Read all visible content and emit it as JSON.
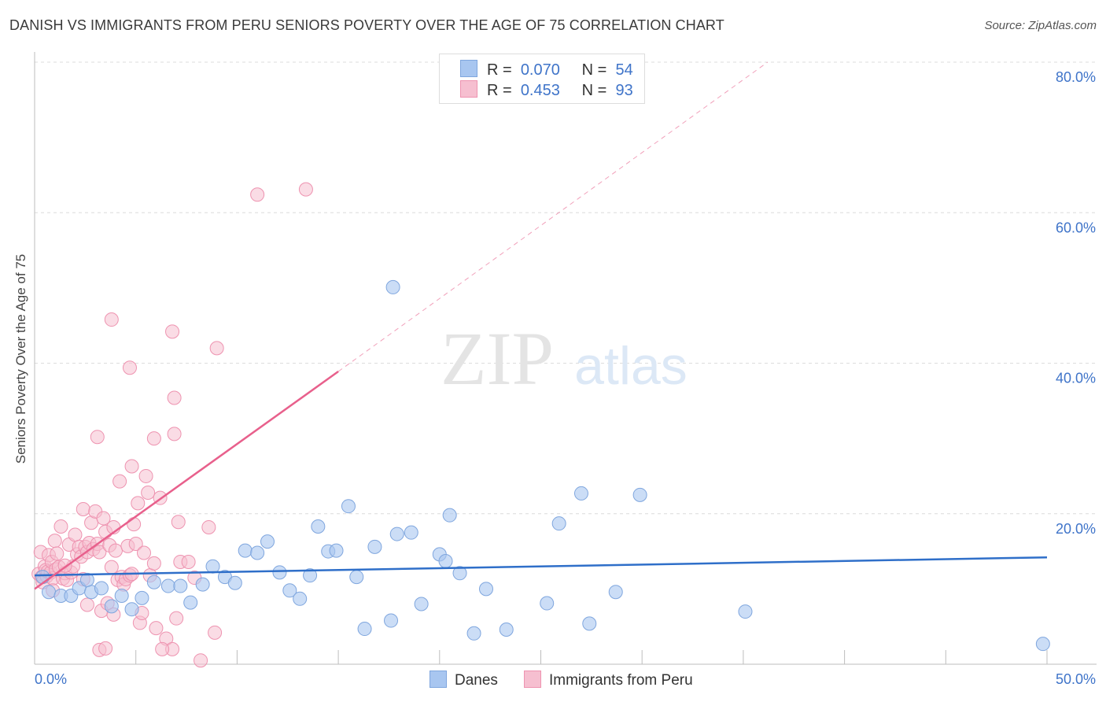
{
  "header": {
    "title": "DANISH VS IMMIGRANTS FROM PERU SENIORS POVERTY OVER THE AGE OF 75 CORRELATION CHART",
    "source": "Source: ZipAtlas.com"
  },
  "watermark": {
    "zip": "ZIP",
    "atlas": "atlas"
  },
  "legend": {
    "rows": [
      {
        "r_label": "R =",
        "r_value": "0.070",
        "n_label": "N =",
        "n_value": "54"
      },
      {
        "r_label": "R =",
        "r_value": "0.453",
        "n_label": "N =",
        "n_value": "93"
      }
    ]
  },
  "bottom_legend": {
    "danes": "Danes",
    "peru": "Immigrants from Peru"
  },
  "colors": {
    "danes_fill": "#a8c6f0",
    "danes_stroke": "#7fa6de",
    "danes_line": "#2f6fc9",
    "peru_fill": "#f6bfd0",
    "peru_stroke": "#ee93b0",
    "peru_line": "#e8608c",
    "axis_text": "#3f74c9",
    "grid": "#dcdcdc"
  },
  "chart_data": {
    "type": "scatter",
    "title": "DANISH VS IMMIGRANTS FROM PERU SENIORS POVERTY OVER THE AGE OF 75 CORRELATION CHART",
    "xlabel": "",
    "ylabel": "Seniors Poverty Over the Age of 75",
    "xlim": [
      0,
      50
    ],
    "ylim": [
      0,
      80
    ],
    "x_tick_labels": [
      "0.0%",
      "50.0%"
    ],
    "y_ticks": [
      20,
      40,
      60,
      80
    ],
    "y_tick_labels": [
      "20.0%",
      "40.0%",
      "60.0%",
      "80.0%"
    ],
    "grid": true,
    "legend_position": "top-center",
    "series": [
      {
        "name": "Danes",
        "R": 0.07,
        "N": 54,
        "trend": {
          "x": [
            0,
            50
          ],
          "y": [
            11.8,
            14.2
          ]
        },
        "points": [
          [
            0.7,
            9.6
          ],
          [
            1.3,
            9.1
          ],
          [
            1.8,
            9.1
          ],
          [
            2.2,
            10.1
          ],
          [
            2.8,
            9.6
          ],
          [
            3.3,
            10.1
          ],
          [
            3.8,
            7.7
          ],
          [
            4.3,
            9.1
          ],
          [
            4.8,
            7.3
          ],
          [
            5.3,
            8.8
          ],
          [
            5.9,
            10.9
          ],
          [
            6.6,
            10.4
          ],
          [
            7.2,
            10.4
          ],
          [
            7.7,
            8.2
          ],
          [
            8.3,
            10.6
          ],
          [
            8.8,
            13.0
          ],
          [
            9.4,
            11.6
          ],
          [
            9.9,
            10.8
          ],
          [
            10.4,
            15.1
          ],
          [
            11.0,
            14.8
          ],
          [
            11.5,
            16.3
          ],
          [
            12.1,
            12.2
          ],
          [
            12.6,
            9.8
          ],
          [
            13.1,
            8.7
          ],
          [
            13.6,
            11.8
          ],
          [
            14.0,
            18.3
          ],
          [
            14.5,
            15.0
          ],
          [
            14.9,
            15.1
          ],
          [
            15.5,
            21.0
          ],
          [
            15.9,
            11.6
          ],
          [
            16.3,
            4.7
          ],
          [
            16.8,
            15.6
          ],
          [
            17.6,
            5.8
          ],
          [
            17.9,
            17.3
          ],
          [
            18.6,
            17.5
          ],
          [
            19.1,
            8.0
          ],
          [
            20.0,
            14.6
          ],
          [
            20.3,
            13.7
          ],
          [
            20.5,
            19.8
          ],
          [
            21.0,
            12.1
          ],
          [
            21.7,
            4.1
          ],
          [
            22.3,
            10.0
          ],
          [
            23.3,
            4.6
          ],
          [
            25.3,
            8.1
          ],
          [
            25.9,
            18.7
          ],
          [
            27.0,
            22.7
          ],
          [
            27.4,
            5.4
          ],
          [
            28.7,
            9.6
          ],
          [
            29.9,
            22.5
          ],
          [
            35.1,
            7.0
          ],
          [
            17.7,
            50.1
          ],
          [
            49.8,
            2.7
          ],
          [
            0.4,
            11.6
          ],
          [
            2.6,
            11.2
          ]
        ]
      },
      {
        "name": "Immigrants from Peru",
        "R": 0.453,
        "N": 93,
        "trend": {
          "x": [
            0,
            15
          ],
          "y": [
            10.0,
            38.9
          ]
        },
        "trend_extrapolated": {
          "x": [
            15,
            36.2
          ],
          "y": [
            38.9,
            80
          ]
        },
        "points": [
          [
            0.2,
            12.0
          ],
          [
            0.3,
            14.9
          ],
          [
            0.35,
            11.6
          ],
          [
            0.4,
            10.9
          ],
          [
            0.5,
            13.0
          ],
          [
            0.55,
            12.5
          ],
          [
            0.6,
            11.7
          ],
          [
            0.65,
            12.3
          ],
          [
            0.7,
            14.5
          ],
          [
            0.8,
            12.2
          ],
          [
            0.85,
            13.6
          ],
          [
            0.9,
            11.4
          ],
          [
            1.0,
            16.4
          ],
          [
            1.05,
            12.6
          ],
          [
            1.1,
            14.7
          ],
          [
            1.2,
            12.9
          ],
          [
            1.3,
            18.3
          ],
          [
            1.4,
            11.4
          ],
          [
            1.5,
            12.1
          ],
          [
            1.6,
            11.2
          ],
          [
            1.7,
            15.9
          ],
          [
            1.8,
            12.2
          ],
          [
            1.9,
            13.0
          ],
          [
            2.0,
            17.2
          ],
          [
            2.1,
            14.6
          ],
          [
            2.2,
            15.6
          ],
          [
            2.3,
            14.3
          ],
          [
            2.4,
            20.6
          ],
          [
            2.5,
            15.6
          ],
          [
            2.6,
            14.9
          ],
          [
            2.7,
            16.1
          ],
          [
            2.8,
            18.8
          ],
          [
            2.9,
            15.3
          ],
          [
            3.0,
            20.3
          ],
          [
            3.1,
            16.0
          ],
          [
            3.2,
            14.9
          ],
          [
            3.3,
            7.1
          ],
          [
            3.4,
            19.4
          ],
          [
            3.5,
            17.6
          ],
          [
            3.6,
            8.1
          ],
          [
            3.7,
            15.8
          ],
          [
            3.8,
            12.9
          ],
          [
            3.9,
            18.2
          ],
          [
            4.0,
            15.1
          ],
          [
            4.1,
            11.2
          ],
          [
            4.2,
            24.3
          ],
          [
            4.3,
            11.6
          ],
          [
            4.4,
            10.6
          ],
          [
            4.5,
            11.3
          ],
          [
            4.6,
            15.7
          ],
          [
            4.7,
            11.8
          ],
          [
            4.8,
            26.3
          ],
          [
            4.9,
            18.6
          ],
          [
            5.0,
            16.0
          ],
          [
            5.1,
            21.4
          ],
          [
            5.2,
            5.5
          ],
          [
            5.3,
            6.8
          ],
          [
            5.4,
            14.8
          ],
          [
            5.5,
            25.0
          ],
          [
            5.6,
            22.8
          ],
          [
            5.7,
            11.8
          ],
          [
            5.9,
            13.4
          ],
          [
            6.0,
            4.8
          ],
          [
            6.2,
            22.1
          ],
          [
            6.5,
            3.4
          ],
          [
            6.8,
            2.0
          ],
          [
            7.0,
            6.1
          ],
          [
            7.2,
            13.6
          ],
          [
            7.6,
            13.6
          ],
          [
            7.9,
            11.5
          ],
          [
            8.2,
            0.5
          ],
          [
            8.6,
            18.2
          ],
          [
            8.9,
            4.2
          ],
          [
            3.1,
            30.2
          ],
          [
            4.7,
            39.4
          ],
          [
            3.8,
            45.8
          ],
          [
            6.8,
            44.2
          ],
          [
            9.0,
            42.0
          ],
          [
            6.9,
            35.4
          ],
          [
            5.9,
            30.0
          ],
          [
            6.9,
            30.6
          ],
          [
            11.0,
            62.4
          ],
          [
            13.4,
            63.1
          ],
          [
            3.2,
            1.9
          ],
          [
            3.5,
            2.1
          ],
          [
            6.3,
            2.0
          ],
          [
            3.9,
            6.6
          ],
          [
            2.6,
            7.9
          ],
          [
            7.1,
            18.9
          ],
          [
            1.5,
            13.1
          ],
          [
            0.9,
            9.8
          ],
          [
            2.4,
            11.3
          ],
          [
            4.8,
            12.0
          ]
        ]
      }
    ]
  }
}
